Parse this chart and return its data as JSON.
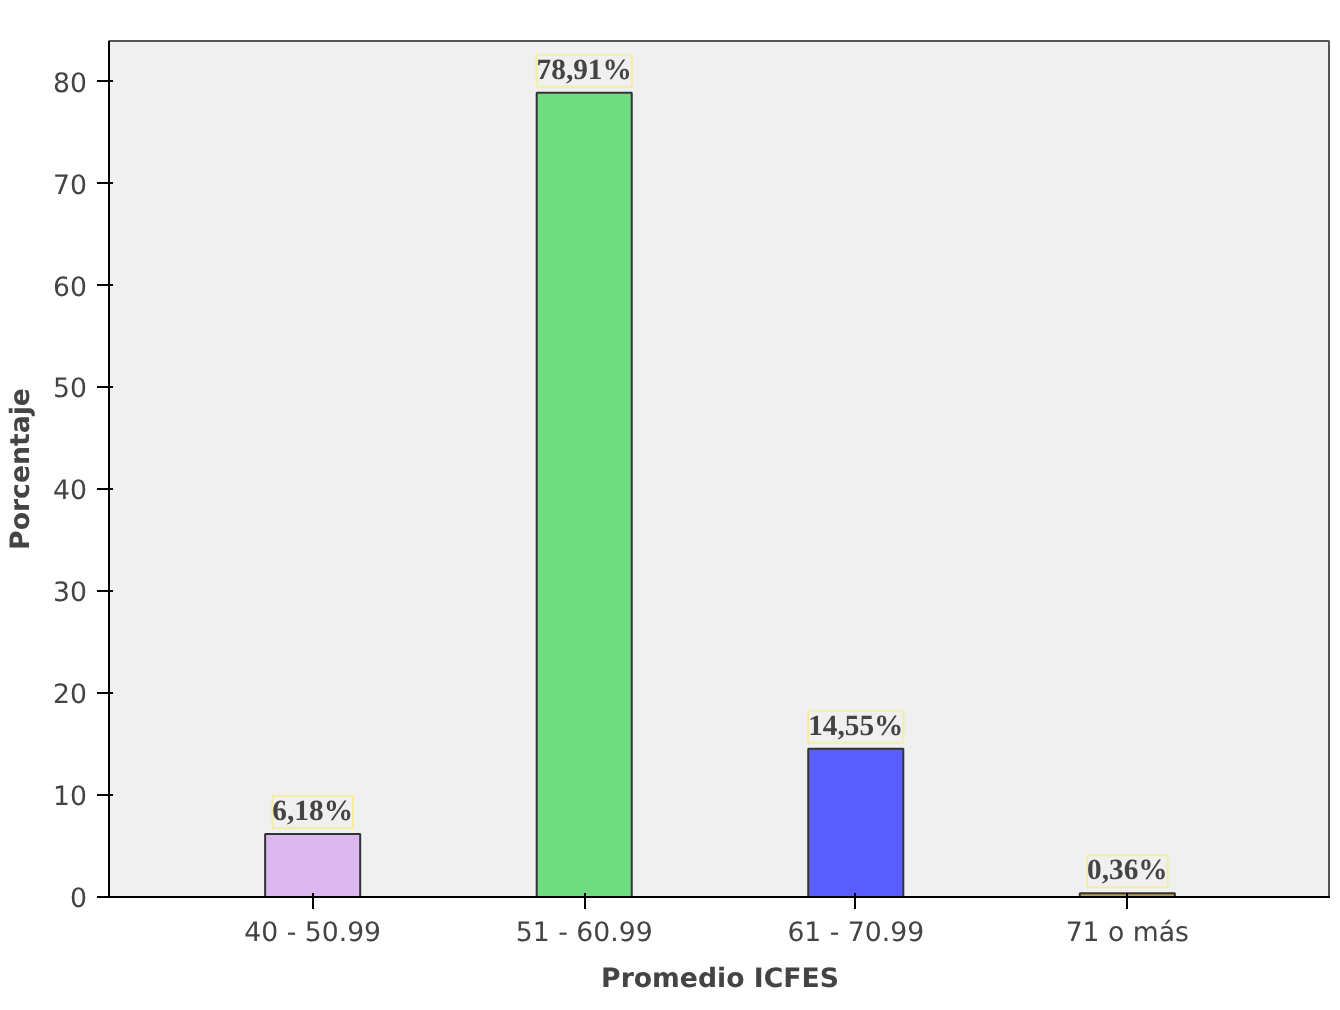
{
  "chart_data": {
    "type": "bar",
    "xlabel": "Promedio ICFES",
    "ylabel": "Porcentaje",
    "categories": [
      "40 - 50.99",
      "51 - 60.99",
      "61 - 70.99",
      "71 o más"
    ],
    "values": [
      6.18,
      78.91,
      14.55,
      0.36
    ],
    "colors": [
      "#ddb8f0",
      "#70dc82",
      "#5a5eff",
      "#b5a642"
    ],
    "value_labels": [
      "6,18%",
      "78,91%",
      "14,55%",
      "0,36%"
    ],
    "ylim": [
      0,
      84
    ],
    "yticks": [
      0,
      10,
      20,
      30,
      40,
      50,
      60,
      70,
      80
    ],
    "grid": false
  }
}
